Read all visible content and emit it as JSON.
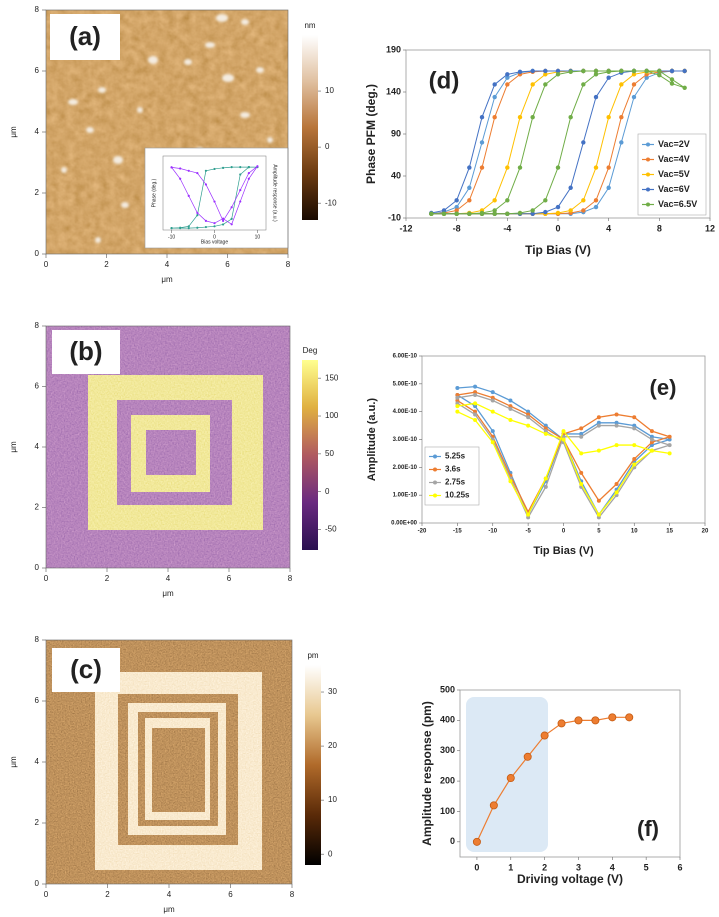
{
  "chart_data": [
    {
      "type": "image",
      "panel_label": "(a)",
      "xlabel": "μm",
      "ylabel": "μm",
      "xlim": [
        0,
        8
      ],
      "xticks": [
        0,
        2,
        4,
        6,
        8
      ],
      "ylim": [
        0,
        8
      ],
      "yticks": [
        0,
        2,
        4,
        6,
        8
      ],
      "colorbar": {
        "label": "nm",
        "lim": [
          -13,
          20
        ],
        "ticks": [
          10,
          0,
          -10
        ],
        "colors": [
          "#1a0a00",
          "#6b3a10",
          "#b8753a",
          "#e0c0a0",
          "#ffffff"
        ]
      }
    },
    {
      "type": "line",
      "inset": true,
      "xlabel": "Bias voltage",
      "ylabel": "Phase (deg.)",
      "y2label": "Amplitude response (a.u.)",
      "xlim": [
        -12,
        12
      ],
      "xticks": [
        -10,
        0,
        10
      ],
      "ylim": [
        0,
        200
      ],
      "y2lim": [
        0,
        650
      ],
      "x": [
        -10,
        -8,
        -6,
        -4,
        -2,
        0,
        2,
        4,
        6,
        8,
        10,
        8,
        6,
        4,
        2,
        0,
        -2,
        -4,
        -6,
        -8,
        -10
      ],
      "series": [
        {
          "color": "#2e9e8f",
          "values": [
            5,
            5,
            5,
            6,
            8,
            10,
            15,
            30,
            150,
            170,
            170,
            170,
            170,
            170,
            168,
            165,
            160,
            40,
            10,
            6,
            5
          ]
        },
        {
          "color": "#9b30ff",
          "axis": "y2",
          "values": [
            550,
            450,
            300,
            150,
            80,
            60,
            100,
            50,
            250,
            450,
            560,
            500,
            350,
            200,
            80,
            250,
            400,
            500,
            520,
            540,
            550
          ]
        }
      ]
    },
    {
      "type": "line",
      "panel_label": "(d)",
      "xlabel": "Tip Bias (V)",
      "ylabel": "Phase PFM (deg.)",
      "xlim": [
        -12,
        12
      ],
      "xticks": [
        -12,
        -8,
        -4,
        0,
        4,
        8,
        12
      ],
      "ylim": [
        -10,
        190
      ],
      "yticks": [
        -10,
        40,
        90,
        140,
        190
      ],
      "legend_position": "lower right",
      "x": [
        -10,
        -9,
        -8,
        -7,
        -6,
        -5,
        -4,
        -3,
        -2,
        -1,
        0,
        1,
        2,
        3,
        4,
        5,
        6,
        7,
        8,
        9,
        10,
        9,
        8,
        7,
        6,
        5,
        4,
        3,
        2,
        1,
        0,
        -1,
        -2,
        -3,
        -4,
        -5,
        -6,
        -7,
        -8,
        -9,
        -10
      ],
      "series": [
        {
          "name": "Vac=2V",
          "color": "#5b9bd5",
          "values": [
            -5,
            -5,
            -5,
            -5,
            -5,
            -5,
            -5,
            -5,
            -5,
            -5,
            -5,
            -5,
            -3,
            3,
            26,
            80,
            134,
            157,
            163,
            165,
            165,
            165,
            165,
            165,
            165,
            165,
            165,
            165,
            165,
            165,
            165,
            165,
            165,
            163,
            157,
            134,
            80,
            26,
            3,
            -3,
            -5
          ]
        },
        {
          "name": "Vac=4V",
          "color": "#ed7d31",
          "values": [
            -5,
            -5,
            -5,
            -5,
            -5,
            -5,
            -5,
            -5,
            -5,
            -5,
            -5,
            -4,
            -1,
            11,
            50,
            110,
            149,
            161,
            164,
            165,
            165,
            165,
            165,
            165,
            165,
            165,
            165,
            165,
            165,
            165,
            165,
            165,
            164,
            161,
            149,
            110,
            50,
            11,
            -1,
            -4,
            -5
          ]
        },
        {
          "name": "Vac=5V",
          "color": "#ffc000",
          "values": [
            -5,
            -5,
            -5,
            -5,
            -5,
            -5,
            -5,
            -5,
            -5,
            -5,
            -4,
            -1,
            11,
            50,
            110,
            149,
            161,
            164,
            165,
            165,
            165,
            165,
            165,
            165,
            165,
            165,
            165,
            165,
            165,
            165,
            164,
            161,
            149,
            110,
            50,
            11,
            -1,
            -4,
            -5,
            -5,
            -5
          ]
        },
        {
          "name": "Vac=6V",
          "color": "#4472c4",
          "values": [
            -5,
            -5,
            -5,
            -5,
            -5,
            -5,
            -5,
            -5,
            -5,
            -3,
            3,
            26,
            80,
            134,
            157,
            163,
            165,
            165,
            165,
            165,
            165,
            165,
            165,
            165,
            165,
            165,
            165,
            165,
            165,
            165,
            165,
            165,
            165,
            164,
            161,
            149,
            110,
            50,
            11,
            -1,
            -4
          ]
        },
        {
          "name": "Vac=6.5V",
          "color": "#70ad47",
          "values": [
            -5,
            -5,
            -5,
            -5,
            -5,
            -5,
            -5,
            -4,
            -1,
            11,
            50,
            110,
            149,
            161,
            164,
            165,
            165,
            165,
            165,
            155,
            145,
            150,
            160,
            165,
            165,
            165,
            165,
            165,
            165,
            164,
            161,
            149,
            110,
            50,
            11,
            -1,
            -4,
            -5,
            -5,
            -5,
            -5
          ]
        }
      ]
    },
    {
      "type": "image",
      "panel_label": "(b)",
      "xlabel": "μm",
      "ylabel": "μm",
      "xlim": [
        0,
        8
      ],
      "xticks": [
        0,
        2,
        4,
        6,
        8
      ],
      "ylim": [
        0,
        8
      ],
      "yticks": [
        0,
        2,
        4,
        6,
        8
      ],
      "colorbar": {
        "label": "Deg",
        "lim": [
          -77,
          174
        ],
        "ticks": [
          150,
          100,
          50,
          0,
          -50
        ],
        "colors": [
          "#2a1050",
          "#6a2a80",
          "#b05a60",
          "#e0b040",
          "#ffff90"
        ]
      }
    },
    {
      "type": "line",
      "panel_label": "(e)",
      "xlabel": "Tip Bias (V)",
      "ylabel": "Amplitude (a.u.)",
      "xlim": [
        -20,
        20
      ],
      "xticks": [
        -20,
        -15,
        -10,
        -5,
        0,
        5,
        10,
        15,
        20
      ],
      "ylim": [
        0,
        6e-10
      ],
      "yticks": [
        {
          "value": 0,
          "label": "0.00E+00"
        },
        {
          "value": 1e-10,
          "label": "1.00E-10"
        },
        {
          "value": 2e-10,
          "label": "2.00E-10"
        },
        {
          "value": 3e-10,
          "label": "3.00E-10"
        },
        {
          "value": 4e-10,
          "label": "4.00E-10"
        },
        {
          "value": 5e-10,
          "label": "5.00E-10"
        },
        {
          "value": 6e-10,
          "label": "6.00E-10"
        }
      ],
      "legend_position": "lower left",
      "x": [
        -15,
        -12.5,
        -10,
        -7.5,
        -5,
        -2.5,
        0,
        2.5,
        5,
        7.5,
        10,
        12.5,
        15,
        12.5,
        10,
        7.5,
        5,
        2.5,
        0,
        -2.5,
        -5,
        -7.5,
        -10,
        -12.5,
        -15
      ],
      "series": [
        {
          "name": "5.25s",
          "color": "#5b9bd5",
          "values": [
            4.85e-10,
            4.9e-10,
            4.7e-10,
            4.4e-10,
            4e-10,
            3.5e-10,
            3e-10,
            1.5e-10,
            3e-11,
            1.2e-10,
            2.2e-10,
            2.8e-10,
            3e-10,
            3.1e-10,
            3.5e-10,
            3.6e-10,
            3.6e-10,
            3.2e-10,
            3.2e-10,
            1.5e-10,
            3e-11,
            1.8e-10,
            3.3e-10,
            4.2e-10,
            4.6e-10
          ]
        },
        {
          "name": "3.6s",
          "color": "#ed7d31",
          "values": [
            4.6e-10,
            4.7e-10,
            4.5e-10,
            4.2e-10,
            3.9e-10,
            3.4e-10,
            3e-10,
            1.8e-10,
            8e-11,
            1.4e-10,
            2.3e-10,
            2.9e-10,
            3.1e-10,
            3.3e-10,
            3.8e-10,
            3.9e-10,
            3.8e-10,
            3.4e-10,
            3.2e-10,
            1.6e-10,
            4e-11,
            1.7e-10,
            3.1e-10,
            4e-10,
            4.4e-10
          ]
        },
        {
          "name": "2.75s",
          "color": "#a5a5a5",
          "values": [
            4.5e-10,
            4.6e-10,
            4.4e-10,
            4.1e-10,
            3.8e-10,
            3.3e-10,
            2.9e-10,
            1.3e-10,
            2e-11,
            1e-10,
            2e-10,
            2.6e-10,
            2.8e-10,
            3e-10,
            3.4e-10,
            3.5e-10,
            3.5e-10,
            3.1e-10,
            3.1e-10,
            1.3e-10,
            2e-11,
            1.6e-10,
            3e-10,
            3.9e-10,
            4.3e-10
          ]
        },
        {
          "name": "10.25s",
          "color": "#ffff00",
          "values": [
            4.2e-10,
            4.3e-10,
            4e-10,
            3.7e-10,
            3.5e-10,
            3.2e-10,
            3e-10,
            1.4e-10,
            3e-11,
            1.1e-10,
            2.1e-10,
            2.6e-10,
            2.5e-10,
            2.6e-10,
            2.8e-10,
            2.8e-10,
            2.6e-10,
            2.5e-10,
            3.3e-10,
            1.6e-10,
            3e-11,
            1.5e-10,
            2.9e-10,
            3.7e-10,
            4e-10
          ]
        }
      ]
    },
    {
      "type": "image",
      "panel_label": "(c)",
      "xlabel": "μm",
      "ylabel": "μm",
      "xlim": [
        0,
        8
      ],
      "xticks": [
        0,
        2,
        4,
        6,
        8
      ],
      "ylim": [
        0,
        8
      ],
      "yticks": [
        0,
        2,
        4,
        6,
        8
      ],
      "colorbar": {
        "label": "pm",
        "lim": [
          -2,
          35
        ],
        "ticks": [
          30,
          20,
          10,
          0
        ],
        "colors": [
          "#000000",
          "#5a2a08",
          "#b06a2a",
          "#e8c890",
          "#ffffff"
        ]
      }
    },
    {
      "type": "line",
      "panel_label": "(f)",
      "xlabel": "Driving voltage (V)",
      "ylabel": "Amplitude response (pm)",
      "xlim": [
        -0.5,
        6
      ],
      "xticks": [
        0,
        1,
        2,
        3,
        4,
        5,
        6
      ],
      "ylim": [
        -50,
        500
      ],
      "yticks": [
        0,
        100,
        200,
        300,
        400,
        500
      ],
      "x": [
        0,
        0.5,
        1,
        1.5,
        2,
        2.5,
        3,
        3.5,
        4,
        4.5
      ],
      "series": [
        {
          "color": "#ed7d31",
          "values": [
            0,
            120,
            210,
            280,
            350,
            390,
            400,
            400,
            410,
            410
          ]
        }
      ]
    }
  ]
}
